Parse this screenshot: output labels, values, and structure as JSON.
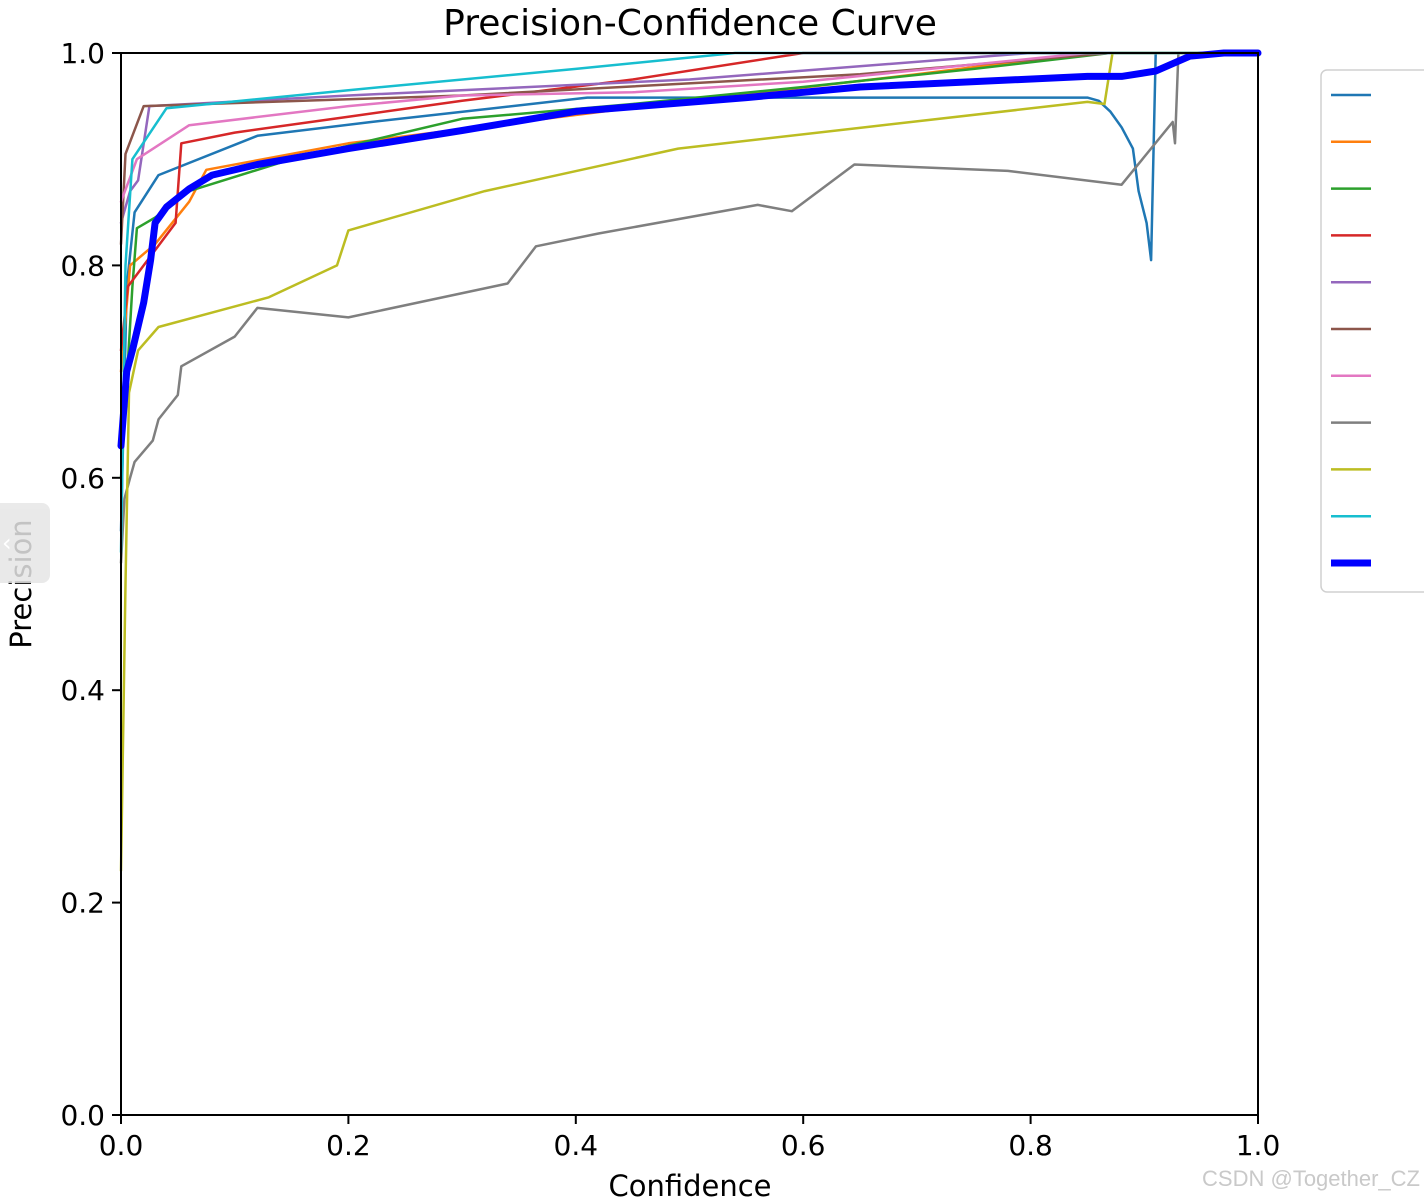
{
  "chart_data": {
    "type": "line",
    "title": "Precision-Confidence Curve",
    "xlabel": "Confidence",
    "ylabel": "Precision",
    "xlim": [
      0,
      1
    ],
    "ylim": [
      0,
      1
    ],
    "xticks": [
      "0.0",
      "0.2",
      "0.4",
      "0.6",
      "0.8",
      "1.0"
    ],
    "yticks": [
      "0.0",
      "0.2",
      "0.4",
      "0.6",
      "0.8",
      "1.0"
    ],
    "grid": false,
    "legend": "upper right, outside plot (entries without text)",
    "series": [
      {
        "color": "#1f77b4",
        "width": 2.5,
        "points": [
          [
            0.0,
            0.55
          ],
          [
            0.005,
            0.78
          ],
          [
            0.012,
            0.85
          ],
          [
            0.033,
            0.885
          ],
          [
            0.12,
            0.922
          ],
          [
            0.22,
            0.935
          ],
          [
            0.32,
            0.947
          ],
          [
            0.41,
            0.958
          ],
          [
            0.55,
            0.958
          ],
          [
            0.85,
            0.958
          ],
          [
            0.86,
            0.955
          ],
          [
            0.87,
            0.945
          ],
          [
            0.88,
            0.93
          ],
          [
            0.89,
            0.91
          ],
          [
            0.895,
            0.87
          ],
          [
            0.902,
            0.84
          ],
          [
            0.906,
            0.805
          ],
          [
            0.91,
            1.0
          ],
          [
            1.0,
            1.0
          ]
        ]
      },
      {
        "color": "#ff7f0e",
        "width": 2.5,
        "points": [
          [
            0.0,
            0.7
          ],
          [
            0.008,
            0.8
          ],
          [
            0.03,
            0.82
          ],
          [
            0.06,
            0.86
          ],
          [
            0.075,
            0.89
          ],
          [
            0.2,
            0.915
          ],
          [
            0.35,
            0.935
          ],
          [
            0.5,
            0.955
          ],
          [
            0.7,
            0.98
          ],
          [
            0.85,
            1.0
          ],
          [
            1.0,
            1.0
          ]
        ]
      },
      {
        "color": "#2ca02c",
        "width": 2.5,
        "points": [
          [
            0.0,
            0.6
          ],
          [
            0.01,
            0.78
          ],
          [
            0.014,
            0.835
          ],
          [
            0.03,
            0.845
          ],
          [
            0.06,
            0.87
          ],
          [
            0.15,
            0.9
          ],
          [
            0.3,
            0.938
          ],
          [
            0.45,
            0.952
          ],
          [
            0.6,
            0.968
          ],
          [
            0.75,
            0.985
          ],
          [
            0.87,
            1.0
          ],
          [
            1.0,
            1.0
          ]
        ]
      },
      {
        "color": "#d62728",
        "width": 2.5,
        "points": [
          [
            0.0,
            0.72
          ],
          [
            0.006,
            0.78
          ],
          [
            0.02,
            0.8
          ],
          [
            0.048,
            0.84
          ],
          [
            0.053,
            0.915
          ],
          [
            0.1,
            0.925
          ],
          [
            0.2,
            0.94
          ],
          [
            0.3,
            0.955
          ],
          [
            0.45,
            0.975
          ],
          [
            0.6,
            1.0
          ],
          [
            1.0,
            1.0
          ]
        ]
      },
      {
        "color": "#9467bd",
        "width": 2.5,
        "points": [
          [
            0.0,
            0.84
          ],
          [
            0.008,
            0.87
          ],
          [
            0.015,
            0.88
          ],
          [
            0.025,
            0.95
          ],
          [
            0.2,
            0.96
          ],
          [
            0.5,
            0.975
          ],
          [
            0.8,
            1.0
          ],
          [
            1.0,
            1.0
          ]
        ]
      },
      {
        "color": "#8c564b",
        "width": 2.5,
        "points": [
          [
            0.0,
            0.82
          ],
          [
            0.004,
            0.905
          ],
          [
            0.02,
            0.95
          ],
          [
            0.3,
            0.96
          ],
          [
            0.65,
            0.98
          ],
          [
            0.87,
            1.0
          ],
          [
            1.0,
            1.0
          ]
        ]
      },
      {
        "color": "#e377c2",
        "width": 2.5,
        "points": [
          [
            0.0,
            0.86
          ],
          [
            0.014,
            0.9
          ],
          [
            0.06,
            0.932
          ],
          [
            0.2,
            0.95
          ],
          [
            0.3,
            0.96
          ],
          [
            0.45,
            0.963
          ],
          [
            0.6,
            0.973
          ],
          [
            0.85,
            1.0
          ],
          [
            1.0,
            1.0
          ]
        ]
      },
      {
        "color": "#7f7f7f",
        "width": 2.5,
        "points": [
          [
            0.0,
            0.52
          ],
          [
            0.003,
            0.58
          ],
          [
            0.008,
            0.6
          ],
          [
            0.012,
            0.615
          ],
          [
            0.028,
            0.635
          ],
          [
            0.033,
            0.655
          ],
          [
            0.05,
            0.678
          ],
          [
            0.053,
            0.705
          ],
          [
            0.1,
            0.733
          ],
          [
            0.12,
            0.76
          ],
          [
            0.2,
            0.751
          ],
          [
            0.34,
            0.783
          ],
          [
            0.365,
            0.818
          ],
          [
            0.42,
            0.83
          ],
          [
            0.56,
            0.857
          ],
          [
            0.59,
            0.851
          ],
          [
            0.645,
            0.895
          ],
          [
            0.78,
            0.889
          ],
          [
            0.88,
            0.876
          ],
          [
            0.925,
            0.935
          ],
          [
            0.927,
            0.915
          ],
          [
            0.93,
            1.0
          ],
          [
            1.0,
            1.0
          ]
        ]
      },
      {
        "color": "#bcbd22",
        "width": 2.5,
        "points": [
          [
            0.0,
            0.23
          ],
          [
            0.004,
            0.5
          ],
          [
            0.007,
            0.68
          ],
          [
            0.015,
            0.72
          ],
          [
            0.033,
            0.742
          ],
          [
            0.13,
            0.77
          ],
          [
            0.19,
            0.8
          ],
          [
            0.2,
            0.833
          ],
          [
            0.32,
            0.87
          ],
          [
            0.49,
            0.91
          ],
          [
            0.85,
            0.954
          ],
          [
            0.865,
            0.952
          ],
          [
            0.872,
            1.0
          ],
          [
            1.0,
            1.0
          ]
        ]
      },
      {
        "color": "#17becf",
        "width": 2.5,
        "points": [
          [
            0.0,
            0.53
          ],
          [
            0.004,
            0.8
          ],
          [
            0.01,
            0.9
          ],
          [
            0.04,
            0.948
          ],
          [
            0.2,
            0.965
          ],
          [
            0.4,
            0.985
          ],
          [
            0.54,
            1.0
          ],
          [
            1.0,
            1.0
          ]
        ]
      },
      {
        "color": "#0000ff",
        "width": 7,
        "points": [
          [
            0.0,
            0.63
          ],
          [
            0.005,
            0.7
          ],
          [
            0.01,
            0.72
          ],
          [
            0.02,
            0.765
          ],
          [
            0.026,
            0.805
          ],
          [
            0.03,
            0.84
          ],
          [
            0.04,
            0.855
          ],
          [
            0.06,
            0.872
          ],
          [
            0.08,
            0.885
          ],
          [
            0.12,
            0.895
          ],
          [
            0.2,
            0.91
          ],
          [
            0.3,
            0.927
          ],
          [
            0.4,
            0.945
          ],
          [
            0.55,
            0.958
          ],
          [
            0.65,
            0.968
          ],
          [
            0.85,
            0.978
          ],
          [
            0.88,
            0.978
          ],
          [
            0.91,
            0.983
          ],
          [
            0.94,
            0.997
          ],
          [
            0.97,
            1.0
          ],
          [
            1.0,
            1.0
          ]
        ]
      }
    ]
  },
  "watermark": "CSDN @Together_CZ",
  "side_tab": {
    "icon": "chevron-left-icon",
    "glyph": "‹"
  }
}
